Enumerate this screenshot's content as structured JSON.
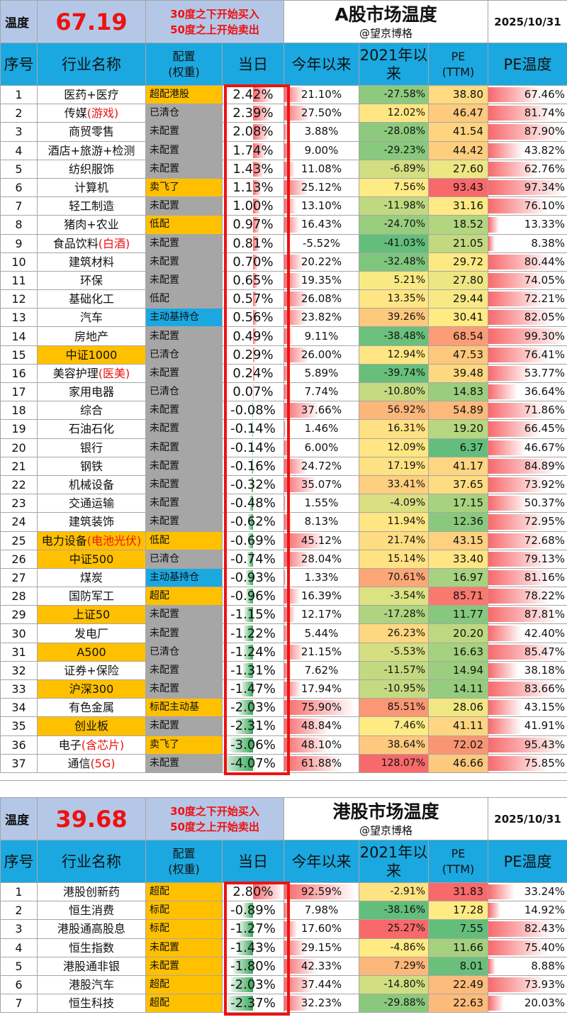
{
  "a": {
    "temp_label": "温度",
    "temp_value": "67.19",
    "rule_buy": "30度之下开始买入",
    "rule_sell": "50度之上开始卖出",
    "title": "A股市场温度",
    "author": "@望京博格",
    "date": "2025/10/31",
    "headers": {
      "no": "序号",
      "name": "行业名称",
      "cfg": "配置\n(权重)",
      "day": "当日",
      "ytd": "今年以来",
      "since": "2021年以来",
      "pe": "PE\n(TTM)",
      "temp": "PE温度"
    },
    "rows": [
      {
        "no": "1",
        "name": "医药+医疗",
        "name_red": "",
        "hl": false,
        "cfg": "超配港股",
        "cfg_c": "o",
        "day": "2.42%",
        "day_v": 2.42,
        "ytd": "21.10%",
        "ytd_v": 21.1,
        "since": "-27.58%",
        "since_v": -27.58,
        "pe": "38.80",
        "pe_v": 38.8,
        "temp": "67.46%",
        "temp_v": 67.46
      },
      {
        "no": "2",
        "name": "传媒",
        "name_red": "(游戏)",
        "hl": false,
        "cfg": "已清仓",
        "cfg_c": "g",
        "day": "2.39%",
        "day_v": 2.39,
        "ytd": "27.50%",
        "ytd_v": 27.5,
        "since": "12.02%",
        "since_v": 12.02,
        "pe": "46.47",
        "pe_v": 46.47,
        "temp": "81.74%",
        "temp_v": 81.74
      },
      {
        "no": "3",
        "name": "商贸零售",
        "name_red": "",
        "hl": false,
        "cfg": "未配置",
        "cfg_c": "g",
        "day": "2.08%",
        "day_v": 2.08,
        "ytd": "3.88%",
        "ytd_v": 3.88,
        "since": "-28.08%",
        "since_v": -28.08,
        "pe": "41.54",
        "pe_v": 41.54,
        "temp": "87.90%",
        "temp_v": 87.9
      },
      {
        "no": "4",
        "name": "酒店+旅游+检测",
        "name_red": "",
        "hl": false,
        "cfg": "未配置",
        "cfg_c": "g",
        "day": "1.74%",
        "day_v": 1.74,
        "ytd": "9.00%",
        "ytd_v": 9.0,
        "since": "-29.23%",
        "since_v": -29.23,
        "pe": "44.42",
        "pe_v": 44.42,
        "temp": "43.82%",
        "temp_v": 43.82
      },
      {
        "no": "5",
        "name": "纺织服饰",
        "name_red": "",
        "hl": false,
        "cfg": "未配置",
        "cfg_c": "g",
        "day": "1.43%",
        "day_v": 1.43,
        "ytd": "11.08%",
        "ytd_v": 11.08,
        "since": "-6.89%",
        "since_v": -6.89,
        "pe": "27.60",
        "pe_v": 27.6,
        "temp": "62.76%",
        "temp_v": 62.76
      },
      {
        "no": "6",
        "name": "计算机",
        "name_red": "",
        "hl": false,
        "cfg": "卖飞了",
        "cfg_c": "o",
        "day": "1.13%",
        "day_v": 1.13,
        "ytd": "25.12%",
        "ytd_v": 25.12,
        "since": "7.56%",
        "since_v": 7.56,
        "pe": "93.43",
        "pe_v": 93.43,
        "temp": "97.34%",
        "temp_v": 97.34
      },
      {
        "no": "7",
        "name": "轻工制造",
        "name_red": "",
        "hl": false,
        "cfg": "未配置",
        "cfg_c": "g",
        "day": "1.00%",
        "day_v": 1.0,
        "ytd": "13.10%",
        "ytd_v": 13.1,
        "since": "-11.98%",
        "since_v": -11.98,
        "pe": "31.16",
        "pe_v": 31.16,
        "temp": "76.10%",
        "temp_v": 76.1
      },
      {
        "no": "8",
        "name": "猪肉+农业",
        "name_red": "",
        "hl": false,
        "cfg": "低配",
        "cfg_c": "o",
        "day": "0.97%",
        "day_v": 0.97,
        "ytd": "16.43%",
        "ytd_v": 16.43,
        "since": "-24.70%",
        "since_v": -24.7,
        "pe": "18.52",
        "pe_v": 18.52,
        "temp": "13.33%",
        "temp_v": 13.33
      },
      {
        "no": "9",
        "name": "食品饮料",
        "name_red": "(白酒)",
        "hl": false,
        "cfg": "未配置",
        "cfg_c": "g",
        "day": "0.81%",
        "day_v": 0.81,
        "ytd": "-5.52%",
        "ytd_v": -5.52,
        "since": "-41.03%",
        "since_v": -41.03,
        "pe": "21.05",
        "pe_v": 21.05,
        "temp": "8.38%",
        "temp_v": 8.38
      },
      {
        "no": "10",
        "name": "建筑材料",
        "name_red": "",
        "hl": false,
        "cfg": "未配置",
        "cfg_c": "g",
        "day": "0.70%",
        "day_v": 0.7,
        "ytd": "20.22%",
        "ytd_v": 20.22,
        "since": "-32.48%",
        "since_v": -32.48,
        "pe": "29.72",
        "pe_v": 29.72,
        "temp": "80.44%",
        "temp_v": 80.44
      },
      {
        "no": "11",
        "name": "环保",
        "name_red": "",
        "hl": false,
        "cfg": "未配置",
        "cfg_c": "g",
        "day": "0.65%",
        "day_v": 0.65,
        "ytd": "19.35%",
        "ytd_v": 19.35,
        "since": "5.21%",
        "since_v": 5.21,
        "pe": "27.80",
        "pe_v": 27.8,
        "temp": "74.05%",
        "temp_v": 74.05
      },
      {
        "no": "12",
        "name": "基础化工",
        "name_red": "",
        "hl": false,
        "cfg": "低配",
        "cfg_c": "g",
        "day": "0.57%",
        "day_v": 0.57,
        "ytd": "26.08%",
        "ytd_v": 26.08,
        "since": "13.35%",
        "since_v": 13.35,
        "pe": "29.44",
        "pe_v": 29.44,
        "temp": "72.21%",
        "temp_v": 72.21
      },
      {
        "no": "13",
        "name": "汽车",
        "name_red": "",
        "hl": false,
        "cfg": "主动基持仓",
        "cfg_c": "b",
        "day": "0.56%",
        "day_v": 0.56,
        "ytd": "23.82%",
        "ytd_v": 23.82,
        "since": "39.26%",
        "since_v": 39.26,
        "pe": "30.41",
        "pe_v": 30.41,
        "temp": "82.05%",
        "temp_v": 82.05
      },
      {
        "no": "14",
        "name": "房地产",
        "name_red": "",
        "hl": false,
        "cfg": "未配置",
        "cfg_c": "g",
        "day": "0.49%",
        "day_v": 0.49,
        "ytd": "9.11%",
        "ytd_v": 9.11,
        "since": "-38.48%",
        "since_v": -38.48,
        "pe": "68.54",
        "pe_v": 68.54,
        "temp": "99.30%",
        "temp_v": 99.3
      },
      {
        "no": "15",
        "name": "中证1000",
        "name_red": "",
        "hl": true,
        "cfg": "已清仓",
        "cfg_c": "g",
        "day": "0.29%",
        "day_v": 0.29,
        "ytd": "26.00%",
        "ytd_v": 26.0,
        "since": "12.94%",
        "since_v": 12.94,
        "pe": "47.53",
        "pe_v": 47.53,
        "temp": "76.41%",
        "temp_v": 76.41
      },
      {
        "no": "16",
        "name": "美容护理",
        "name_red": "(医美)",
        "hl": false,
        "cfg": "未配置",
        "cfg_c": "g",
        "day": "0.24%",
        "day_v": 0.24,
        "ytd": "5.89%",
        "ytd_v": 5.89,
        "since": "-39.74%",
        "since_v": -39.74,
        "pe": "39.48",
        "pe_v": 39.48,
        "temp": "53.77%",
        "temp_v": 53.77
      },
      {
        "no": "17",
        "name": "家用电器",
        "name_red": "",
        "hl": false,
        "cfg": "已清仓",
        "cfg_c": "g",
        "day": "0.07%",
        "day_v": 0.07,
        "ytd": "7.74%",
        "ytd_v": 7.74,
        "since": "-10.80%",
        "since_v": -10.8,
        "pe": "14.83",
        "pe_v": 14.83,
        "temp": "36.64%",
        "temp_v": 36.64
      },
      {
        "no": "18",
        "name": "综合",
        "name_red": "",
        "hl": false,
        "cfg": "未配置",
        "cfg_c": "g",
        "day": "-0.08%",
        "day_v": -0.08,
        "ytd": "37.66%",
        "ytd_v": 37.66,
        "since": "56.92%",
        "since_v": 56.92,
        "pe": "54.89",
        "pe_v": 54.89,
        "temp": "71.86%",
        "temp_v": 71.86
      },
      {
        "no": "19",
        "name": "石油石化",
        "name_red": "",
        "hl": false,
        "cfg": "未配置",
        "cfg_c": "g",
        "day": "-0.14%",
        "day_v": -0.14,
        "ytd": "1.46%",
        "ytd_v": 1.46,
        "since": "16.31%",
        "since_v": 16.31,
        "pe": "19.20",
        "pe_v": 19.2,
        "temp": "66.45%",
        "temp_v": 66.45
      },
      {
        "no": "20",
        "name": "银行",
        "name_red": "",
        "hl": false,
        "cfg": "未配置",
        "cfg_c": "g",
        "day": "-0.14%",
        "day_v": -0.14,
        "ytd": "6.00%",
        "ytd_v": 6.0,
        "since": "12.09%",
        "since_v": 12.09,
        "pe": "6.37",
        "pe_v": 6.37,
        "temp": "46.67%",
        "temp_v": 46.67
      },
      {
        "no": "21",
        "name": "钢铁",
        "name_red": "",
        "hl": false,
        "cfg": "未配置",
        "cfg_c": "g",
        "day": "-0.16%",
        "day_v": -0.16,
        "ytd": "24.72%",
        "ytd_v": 24.72,
        "since": "17.19%",
        "since_v": 17.19,
        "pe": "41.17",
        "pe_v": 41.17,
        "temp": "84.89%",
        "temp_v": 84.89
      },
      {
        "no": "22",
        "name": "机械设备",
        "name_red": "",
        "hl": false,
        "cfg": "未配置",
        "cfg_c": "g",
        "day": "-0.32%",
        "day_v": -0.32,
        "ytd": "35.07%",
        "ytd_v": 35.07,
        "since": "33.41%",
        "since_v": 33.41,
        "pe": "37.65",
        "pe_v": 37.65,
        "temp": "73.92%",
        "temp_v": 73.92
      },
      {
        "no": "23",
        "name": "交通运输",
        "name_red": "",
        "hl": false,
        "cfg": "未配置",
        "cfg_c": "g",
        "day": "-0.48%",
        "day_v": -0.48,
        "ytd": "1.55%",
        "ytd_v": 1.55,
        "since": "-4.09%",
        "since_v": -4.09,
        "pe": "17.15",
        "pe_v": 17.15,
        "temp": "50.37%",
        "temp_v": 50.37
      },
      {
        "no": "24",
        "name": "建筑装饰",
        "name_red": "",
        "hl": false,
        "cfg": "未配置",
        "cfg_c": "g",
        "day": "-0.62%",
        "day_v": -0.62,
        "ytd": "8.13%",
        "ytd_v": 8.13,
        "since": "11.94%",
        "since_v": 11.94,
        "pe": "12.36",
        "pe_v": 12.36,
        "temp": "72.95%",
        "temp_v": 72.95
      },
      {
        "no": "25",
        "name": "电力设备",
        "name_red": "(电池光伏)",
        "hl": true,
        "cfg": "低配",
        "cfg_c": "o",
        "day": "-0.69%",
        "day_v": -0.69,
        "ytd": "45.12%",
        "ytd_v": 45.12,
        "since": "21.74%",
        "since_v": 21.74,
        "pe": "43.15",
        "pe_v": 43.15,
        "temp": "72.68%",
        "temp_v": 72.68
      },
      {
        "no": "26",
        "name": "中证500",
        "name_red": "",
        "hl": true,
        "cfg": "已清仓",
        "cfg_c": "g",
        "day": "-0.74%",
        "day_v": -0.74,
        "ytd": "28.04%",
        "ytd_v": 28.04,
        "since": "15.14%",
        "since_v": 15.14,
        "pe": "33.40",
        "pe_v": 33.4,
        "temp": "79.13%",
        "temp_v": 79.13
      },
      {
        "no": "27",
        "name": "煤炭",
        "name_red": "",
        "hl": false,
        "cfg": "主动基持仓",
        "cfg_c": "b",
        "day": "-0.93%",
        "day_v": -0.93,
        "ytd": "1.33%",
        "ytd_v": 1.33,
        "since": "70.61%",
        "since_v": 70.61,
        "pe": "16.97",
        "pe_v": 16.97,
        "temp": "81.16%",
        "temp_v": 81.16
      },
      {
        "no": "28",
        "name": "国防军工",
        "name_red": "",
        "hl": false,
        "cfg": "超配",
        "cfg_c": "o",
        "day": "-0.96%",
        "day_v": -0.96,
        "ytd": "16.39%",
        "ytd_v": 16.39,
        "since": "-3.54%",
        "since_v": -3.54,
        "pe": "85.71",
        "pe_v": 85.71,
        "temp": "78.22%",
        "temp_v": 78.22
      },
      {
        "no": "29",
        "name": "上证50",
        "name_red": "",
        "hl": true,
        "cfg": "未配置",
        "cfg_c": "g",
        "day": "-1.15%",
        "day_v": -1.15,
        "ytd": "12.17%",
        "ytd_v": 12.17,
        "since": "-17.28%",
        "since_v": -17.28,
        "pe": "11.77",
        "pe_v": 11.77,
        "temp": "87.81%",
        "temp_v": 87.81
      },
      {
        "no": "30",
        "name": "发电厂",
        "name_red": "",
        "hl": false,
        "cfg": "未配置",
        "cfg_c": "g",
        "day": "-1.22%",
        "day_v": -1.22,
        "ytd": "5.44%",
        "ytd_v": 5.44,
        "since": "26.23%",
        "since_v": 26.23,
        "pe": "20.20",
        "pe_v": 20.2,
        "temp": "42.40%",
        "temp_v": 42.4
      },
      {
        "no": "31",
        "name": "A500",
        "name_red": "",
        "hl": true,
        "cfg": "已清仓",
        "cfg_c": "g",
        "day": "-1.24%",
        "day_v": -1.24,
        "ytd": "21.15%",
        "ytd_v": 21.15,
        "since": "-5.53%",
        "since_v": -5.53,
        "pe": "16.63",
        "pe_v": 16.63,
        "temp": "85.47%",
        "temp_v": 85.47
      },
      {
        "no": "32",
        "name": "证券+保险",
        "name_red": "",
        "hl": false,
        "cfg": "未配置",
        "cfg_c": "g",
        "day": "-1.31%",
        "day_v": -1.31,
        "ytd": "7.62%",
        "ytd_v": 7.62,
        "since": "-11.57%",
        "since_v": -11.57,
        "pe": "14.94",
        "pe_v": 14.94,
        "temp": "38.18%",
        "temp_v": 38.18
      },
      {
        "no": "33",
        "name": "沪深300",
        "name_red": "",
        "hl": true,
        "cfg": "未配置",
        "cfg_c": "g",
        "day": "-1.47%",
        "day_v": -1.47,
        "ytd": "17.94%",
        "ytd_v": 17.94,
        "since": "-10.95%",
        "since_v": -10.95,
        "pe": "14.11",
        "pe_v": 14.11,
        "temp": "83.66%",
        "temp_v": 83.66
      },
      {
        "no": "34",
        "name": "有色金属",
        "name_red": "",
        "hl": false,
        "cfg": "标配主动基",
        "cfg_c": "o",
        "day": "-2.03%",
        "day_v": -2.03,
        "ytd": "75.90%",
        "ytd_v": 75.9,
        "since": "85.51%",
        "since_v": 85.51,
        "pe": "28.06",
        "pe_v": 28.06,
        "temp": "43.15%",
        "temp_v": 43.15
      },
      {
        "no": "35",
        "name": "创业板",
        "name_red": "",
        "hl": true,
        "cfg": "未配置",
        "cfg_c": "g",
        "day": "-2.31%",
        "day_v": -2.31,
        "ytd": "48.84%",
        "ytd_v": 48.84,
        "since": "7.46%",
        "since_v": 7.46,
        "pe": "41.11",
        "pe_v": 41.11,
        "temp": "41.91%",
        "temp_v": 41.91
      },
      {
        "no": "36",
        "name": "电子",
        "name_red": "(含芯片)",
        "hl": false,
        "cfg": "卖飞了",
        "cfg_c": "o",
        "day": "-3.06%",
        "day_v": -3.06,
        "ytd": "48.10%",
        "ytd_v": 48.1,
        "since": "38.64%",
        "since_v": 38.64,
        "pe": "72.02",
        "pe_v": 72.02,
        "temp": "95.43%",
        "temp_v": 95.43
      },
      {
        "no": "37",
        "name": "通信",
        "name_red": "(5G)",
        "hl": false,
        "cfg": "未配置",
        "cfg_c": "g",
        "day": "-4.07%",
        "day_v": -4.07,
        "ytd": "61.88%",
        "ytd_v": 61.88,
        "since": "128.07%",
        "since_v": 128.07,
        "pe": "46.66",
        "pe_v": 46.66,
        "temp": "75.85%",
        "temp_v": 75.85
      }
    ]
  },
  "h": {
    "temp_label": "温度",
    "temp_value": "39.68",
    "rule_buy": "30度之下开始买入",
    "rule_sell": "50度之上开始卖出",
    "title": "港股市场温度",
    "author": "@望京博格",
    "date": "2025/10/31",
    "headers": {
      "no": "序号",
      "name": "行业名称",
      "cfg": "配置\n(权重)",
      "day": "当日",
      "ytd": "今年以来",
      "since": "2021年以来",
      "pe": "PE\n(TTM)",
      "temp": "PE温度"
    },
    "rows": [
      {
        "no": "1",
        "name": "港股创新药",
        "name_red": "",
        "hl": false,
        "cfg": "超配",
        "cfg_c": "o",
        "day": "2.80%",
        "day_v": 2.8,
        "ytd": "92.59%",
        "ytd_v": 92.59,
        "since": "-2.91%",
        "since_v": -2.91,
        "pe": "31.83",
        "pe_v": 31.83,
        "temp": "33.24%",
        "temp_v": 33.24
      },
      {
        "no": "2",
        "name": "恒生消费",
        "name_red": "",
        "hl": false,
        "cfg": "标配",
        "cfg_c": "o",
        "day": "-0.89%",
        "day_v": -0.89,
        "ytd": "7.98%",
        "ytd_v": 7.98,
        "since": "-38.16%",
        "since_v": -38.16,
        "pe": "17.28",
        "pe_v": 17.28,
        "temp": "14.92%",
        "temp_v": 14.92
      },
      {
        "no": "3",
        "name": "港股通高股息",
        "name_red": "",
        "hl": false,
        "cfg": "标配",
        "cfg_c": "o",
        "day": "-1.27%",
        "day_v": -1.27,
        "ytd": "17.60%",
        "ytd_v": 17.6,
        "since": "25.27%",
        "since_v": 25.27,
        "pe": "7.55",
        "pe_v": 7.55,
        "temp": "82.43%",
        "temp_v": 82.43
      },
      {
        "no": "4",
        "name": "恒生指数",
        "name_red": "",
        "hl": false,
        "cfg": "未配置",
        "cfg_c": "o",
        "day": "-1.43%",
        "day_v": -1.43,
        "ytd": "29.15%",
        "ytd_v": 29.15,
        "since": "-4.86%",
        "since_v": -4.86,
        "pe": "11.66",
        "pe_v": 11.66,
        "temp": "75.40%",
        "temp_v": 75.4
      },
      {
        "no": "5",
        "name": "港股通非银",
        "name_red": "",
        "hl": false,
        "cfg": "未配置",
        "cfg_c": "o",
        "day": "-1.80%",
        "day_v": -1.8,
        "ytd": "42.33%",
        "ytd_v": 42.33,
        "since": "7.29%",
        "since_v": 7.29,
        "pe": "8.01",
        "pe_v": 8.01,
        "temp": "8.88%",
        "temp_v": 8.88
      },
      {
        "no": "6",
        "name": "港股汽车",
        "name_red": "",
        "hl": false,
        "cfg": "超配",
        "cfg_c": "o",
        "day": "-2.03%",
        "day_v": -2.03,
        "ytd": "37.44%",
        "ytd_v": 37.44,
        "since": "-14.80%",
        "since_v": -14.8,
        "pe": "22.49",
        "pe_v": 22.49,
        "temp": "73.93%",
        "temp_v": 73.93
      },
      {
        "no": "7",
        "name": "恒生科技",
        "name_red": "",
        "hl": false,
        "cfg": "超配",
        "cfg_c": "o",
        "day": "-2.37%",
        "day_v": -2.37,
        "ytd": "32.23%",
        "ytd_v": 32.23,
        "since": "-29.88%",
        "since_v": -29.88,
        "pe": "22.63",
        "pe_v": 22.63,
        "temp": "20.03%",
        "temp_v": 20.03
      }
    ]
  }
}
